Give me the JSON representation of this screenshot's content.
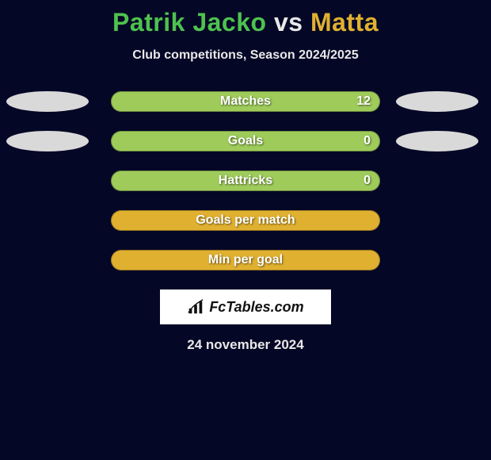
{
  "header": {
    "player1": "Patrik Jacko",
    "vs": "vs",
    "player2": "Matta",
    "subtitle": "Club competitions, Season 2024/2025"
  },
  "colors": {
    "background": "#050726",
    "player1": "#4ec24e",
    "player2": "#e0b030",
    "neutral_ellipse": "#d9d9d9",
    "bar_green": "#9ecb5a",
    "bar_yellow": "#e0b030",
    "bar_green_dark": "#7da847",
    "text_white": "#ffffff"
  },
  "stats": [
    {
      "label": "Matches",
      "value": "12",
      "fill_color": "#9ecb5a",
      "fill_pct": 100,
      "left_ellipse": "bg-gray",
      "right_ellipse": "bg-gray"
    },
    {
      "label": "Goals",
      "value": "0",
      "fill_color": "#9ecb5a",
      "fill_pct": 100,
      "left_ellipse": "bg-gray",
      "right_ellipse": "bg-gray"
    },
    {
      "label": "Hattricks",
      "value": "0",
      "fill_color": "#9ecb5a",
      "fill_pct": 100,
      "left_ellipse": null,
      "right_ellipse": null
    },
    {
      "label": "Goals per match",
      "value": "",
      "fill_color": "#e0b030",
      "fill_pct": 100,
      "left_ellipse": null,
      "right_ellipse": null
    },
    {
      "label": "Min per goal",
      "value": "",
      "fill_color": "#e0b030",
      "fill_pct": 100,
      "left_ellipse": null,
      "right_ellipse": null
    }
  ],
  "footer": {
    "logo_text": "FcTables.com",
    "date": "24 november 2024"
  }
}
